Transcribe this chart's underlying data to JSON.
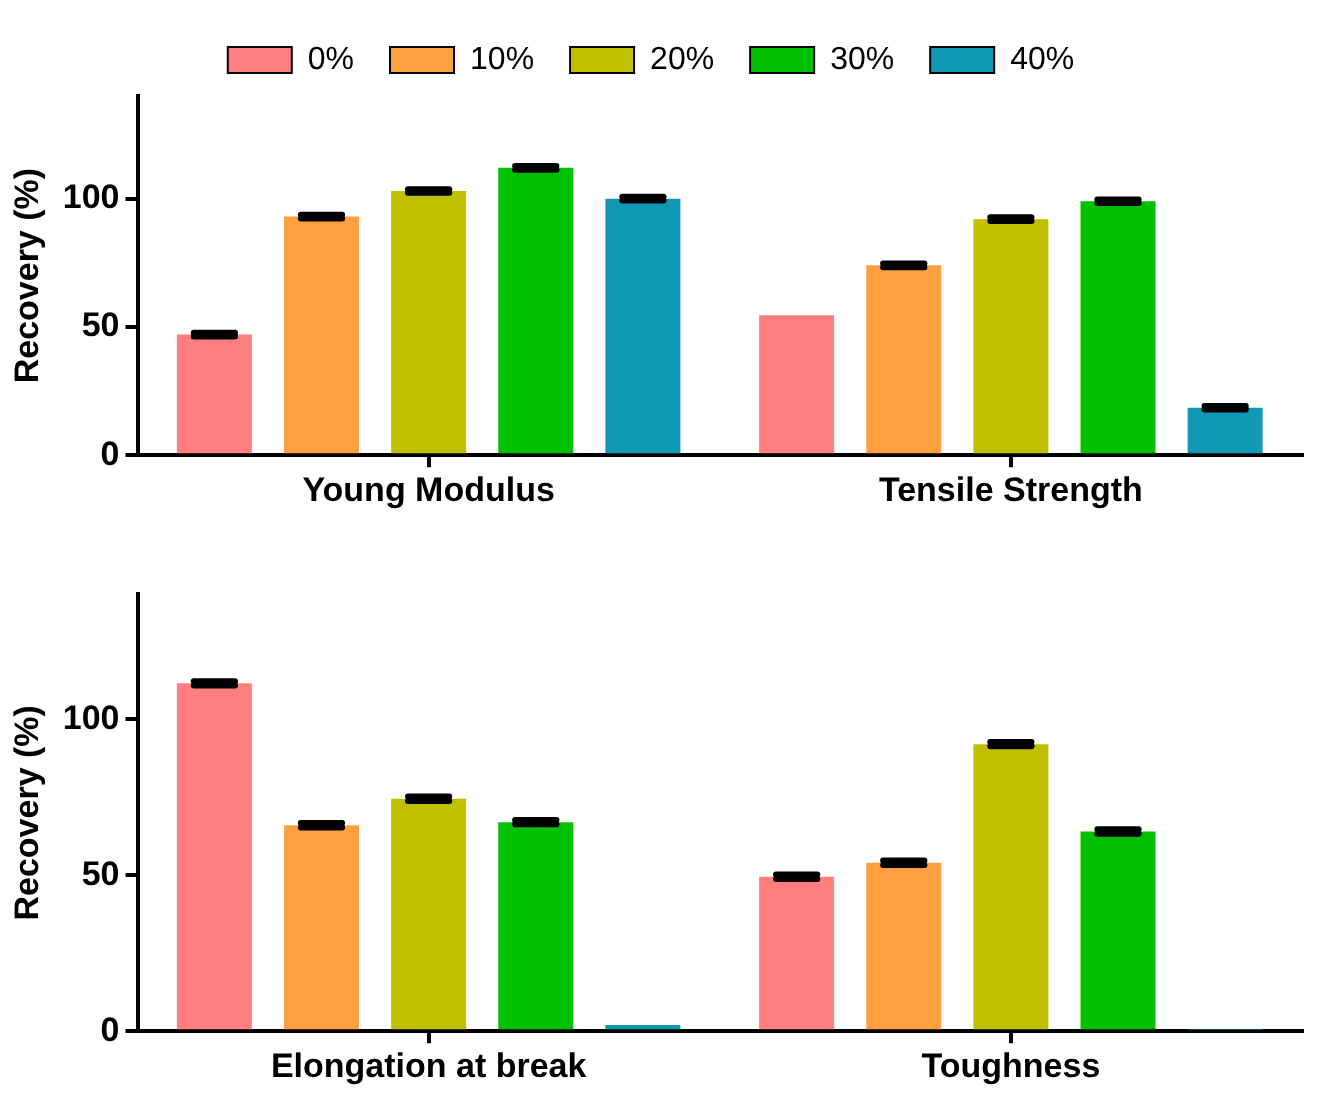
{
  "chart_data": [
    {
      "type": "bar",
      "ylabel": "Recovery (%)",
      "categories": [
        "Young Modulus",
        "Tensile Strength"
      ],
      "ylim": [
        0,
        140
      ],
      "yticks": [
        0,
        50,
        100
      ],
      "grid": false,
      "legend": "top",
      "series": [
        {
          "name": "0%",
          "color": "#ff7f7f",
          "values": [
            47,
            54.5
          ],
          "errors": [
            0.7,
            null
          ]
        },
        {
          "name": "10%",
          "color": "#ffa040",
          "values": [
            93,
            74
          ],
          "errors": [
            0.7,
            0.7
          ]
        },
        {
          "name": "20%",
          "color": "#c0c000",
          "values": [
            103,
            92
          ],
          "errors": [
            0.7,
            0.7
          ]
        },
        {
          "name": "30%",
          "color": "#00c000",
          "values": [
            112,
            99
          ],
          "errors": [
            0.7,
            0.7
          ]
        },
        {
          "name": "40%",
          "color": "#1098b4",
          "values": [
            100,
            18.5
          ],
          "errors": [
            0.7,
            0.7
          ]
        }
      ]
    },
    {
      "type": "bar",
      "ylabel": "Recovery (%)",
      "categories": [
        "Elongation at break",
        "Toughness"
      ],
      "ylim": [
        0,
        140
      ],
      "yticks": [
        0,
        50,
        100
      ],
      "grid": false,
      "legend": false,
      "series": [
        {
          "color": "#ff7f7f",
          "values": [
            111.5,
            49.5
          ],
          "errors": [
            0.7,
            0.7
          ]
        },
        {
          "color": "#ffa040",
          "values": [
            66,
            54
          ],
          "errors": [
            0.7,
            0.7
          ]
        },
        {
          "color": "#c0c000",
          "values": [
            74.5,
            92
          ],
          "errors": [
            0.7,
            0.7
          ]
        },
        {
          "color": "#00c000",
          "values": [
            67,
            64
          ],
          "errors": [
            0.7,
            0.7
          ]
        },
        {
          "color": "#1098b4",
          "values": [
            2,
            0.5
          ],
          "errors": [
            null,
            null
          ]
        }
      ]
    }
  ]
}
